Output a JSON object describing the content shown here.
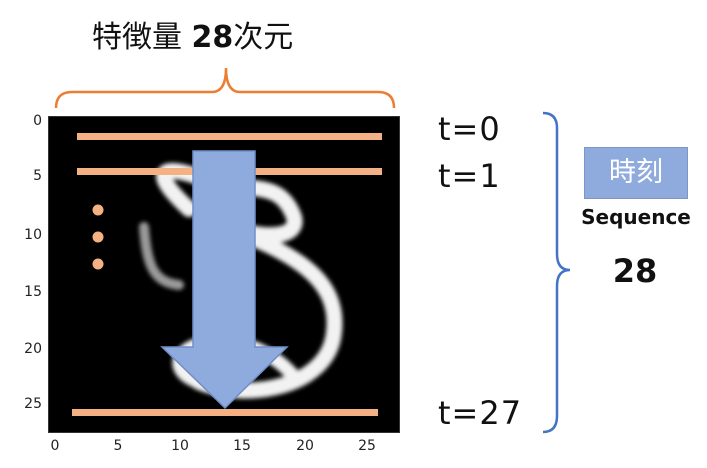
{
  "header": {
    "label_prefix": "特徴量",
    "count": "28",
    "label_suffix": "次元"
  },
  "image_axes": {
    "y_ticks": [
      "0",
      "5",
      "10",
      "15",
      "20",
      "25"
    ],
    "x_ticks": [
      "0",
      "5",
      "10",
      "15",
      "20",
      "25"
    ]
  },
  "time_steps": [
    "t=0",
    "t=1",
    "t=27"
  ],
  "side_panel": {
    "badge": "時刻",
    "caption": "Sequence",
    "count": "28"
  },
  "colors": {
    "row_line": "#f4b183",
    "arrow": "#8faadc",
    "bracket_top": "#ed7d31",
    "bracket_side": "#4472c4"
  },
  "icons": {
    "ellipsis": "vertical-dots-icon",
    "arrow": "down-arrow-icon"
  }
}
